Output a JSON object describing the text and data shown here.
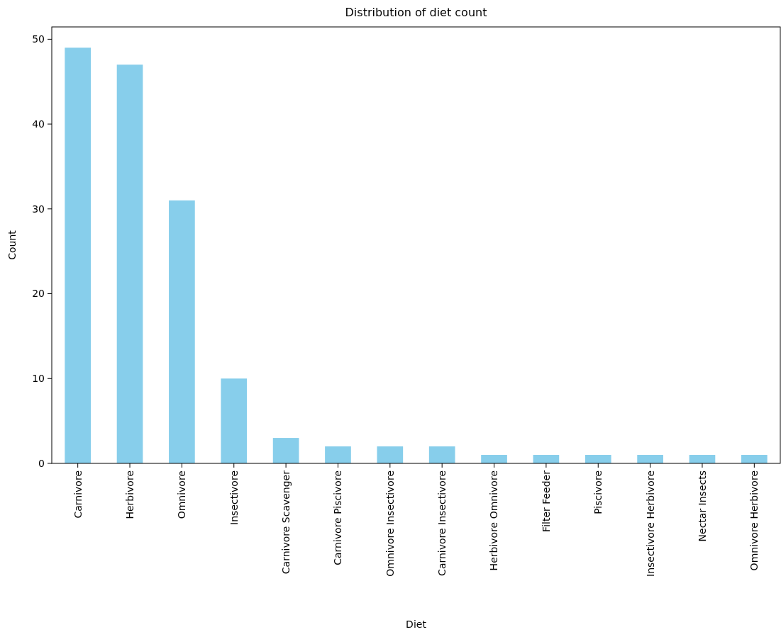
{
  "chart_data": {
    "type": "bar",
    "title": "Distribution of diet count",
    "xlabel": "Diet",
    "ylabel": "Count",
    "categories": [
      "Carnivore",
      "Herbivore",
      "Omnivore",
      "Insectivore",
      "Carnivore Scavenger",
      "Carnivore Piscivore",
      "Omnivore Insectivore",
      "Carnivore Insectivore",
      "Herbivore Omnivore",
      "Filter Feeder",
      "Piscivore",
      "Insectivore Herbivore",
      "Nectar Insects",
      "Omnivore Herbivore"
    ],
    "values": [
      49,
      47,
      31,
      10,
      3,
      2,
      2,
      2,
      1,
      1,
      1,
      1,
      1,
      1
    ],
    "color": "#87ceeb",
    "ylim": [
      0,
      51.45
    ],
    "yticks": [
      0,
      10,
      20,
      30,
      40,
      50
    ],
    "grid": false
  }
}
